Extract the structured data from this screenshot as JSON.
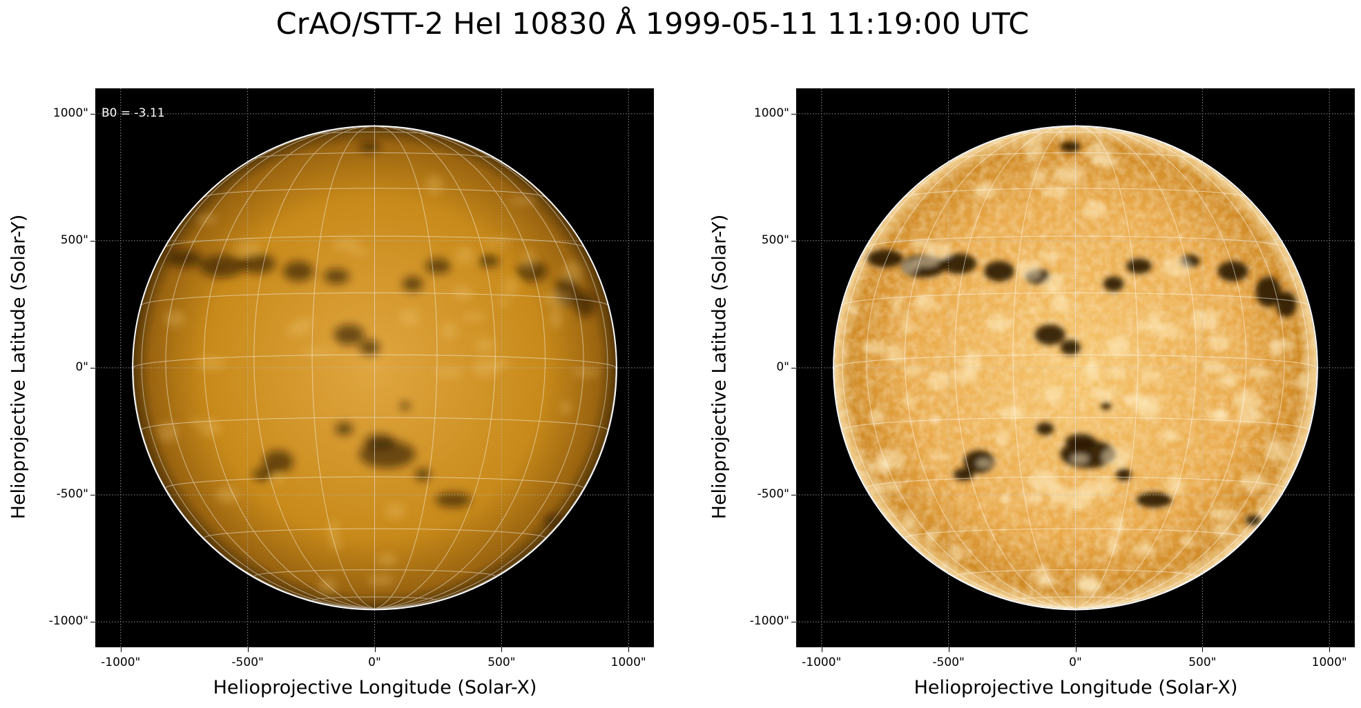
{
  "figure": {
    "title": "CrAO/STT-2 HeI 10830 Å 1999-05-11 11:19:00 UTC"
  },
  "colors": {
    "background": "#000000",
    "disk_base": "#c88a1a",
    "disk_bright": "#f0c060",
    "disk_dark": "#3a2408",
    "grid_line": "#ffffff",
    "limb": "#ffffff"
  },
  "panels": [
    {
      "annotation": "B0 = -3.11",
      "xlabel": "Helioprojective Longitude (Solar-X)",
      "ylabel": "Helioprojective Latitude (Solar-Y)",
      "xticks": [
        "-1000\"",
        "-500\"",
        "0\"",
        "500\"",
        "1000\""
      ],
      "yticks": [
        "1000\"",
        "500\"",
        "0\"",
        "-500\"",
        "-1000\""
      ],
      "contrast": "normal"
    },
    {
      "annotation": "",
      "xlabel": "Helioprojective Longitude (Solar-X)",
      "ylabel": "Helioprojective Latitude (Solar-Y)",
      "xticks": [
        "-1000\"",
        "-500\"",
        "0\"",
        "500\"",
        "1000\""
      ],
      "yticks": [
        "1000\"",
        "500\"",
        "0\"",
        "-500\"",
        "-1000\""
      ],
      "contrast": "enhanced"
    }
  ],
  "axis_range_arcsec": [
    -1100,
    1100
  ],
  "solar_radius_arcsec": 950,
  "grid_spacing_deg": 15,
  "icons": [
    "sun-disk-image"
  ]
}
